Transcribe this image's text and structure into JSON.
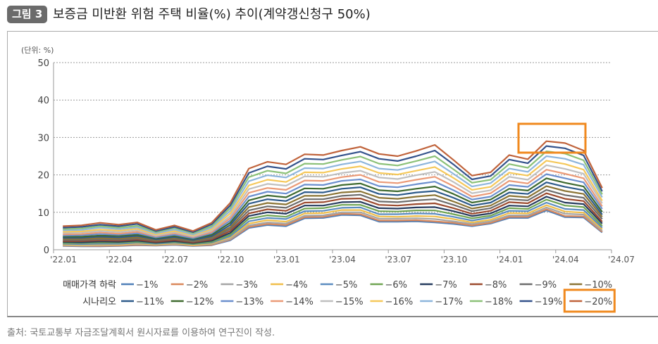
{
  "figure": {
    "badge": "그림 3",
    "title": "보증금 미반환 위험 주택 비율(%) 추이(계약갱신청구 50%)",
    "unit": "(단위: %)"
  },
  "source": "출처: 국토교통부 자금조달계획서 원시자료를 이용하여 연구진이 작성.",
  "highlight_color": "#f0891e",
  "chart_data": {
    "type": "line",
    "title": "",
    "ylim": [
      0,
      50
    ],
    "yticks": [
      0,
      10,
      20,
      30,
      40,
      50
    ],
    "grid": "horizontal dotted",
    "xtick_labels": [
      "'22.01",
      "'22.04",
      "'22.07",
      "'22.10",
      "'23.01",
      "'23.04",
      "'23.07",
      "'23.10",
      "'24.01",
      "'24.04",
      "'24.07"
    ],
    "x": [
      "22.01",
      "22.02",
      "22.03",
      "22.04",
      "22.05",
      "22.06",
      "22.07",
      "22.08",
      "22.09",
      "22.10",
      "22.11",
      "22.12",
      "23.01",
      "23.02",
      "23.03",
      "23.04",
      "23.05",
      "23.06",
      "23.07",
      "23.08",
      "23.09",
      "23.10",
      "23.11",
      "23.12",
      "24.01",
      "24.02",
      "24.03",
      "24.04",
      "24.05",
      "24.06"
    ],
    "legend_title": [
      "매매가격 하락",
      "시나리오"
    ],
    "legend_placement": "bottom",
    "highlighted_series": "-20%",
    "series": [
      {
        "name": "-1%",
        "color": "#4f7fb8",
        "values": [
          1.0,
          0.9,
          0.9,
          1.0,
          1.2,
          1.1,
          1.3,
          1.0,
          1.2,
          2.5,
          5.8,
          6.6,
          6.3,
          8.4,
          8.5,
          9.3,
          9.2,
          7.5,
          7.5,
          7.6,
          7.3,
          6.9,
          6.3,
          7.0,
          8.5,
          8.5,
          10.5,
          8.7,
          8.6,
          4.6
        ]
      },
      {
        "name": "-2%",
        "color": "#d9875a",
        "values": [
          1.1,
          1.0,
          1.0,
          1.1,
          1.3,
          1.2,
          1.4,
          1.1,
          1.3,
          2.7,
          6.1,
          6.9,
          6.6,
          8.7,
          8.8,
          9.6,
          9.5,
          7.8,
          7.8,
          7.9,
          7.6,
          7.2,
          6.5,
          7.2,
          8.8,
          8.8,
          10.8,
          9.0,
          8.9,
          4.8
        ]
      },
      {
        "name": "-3%",
        "color": "#a5a5a5",
        "values": [
          1.2,
          1.1,
          1.2,
          1.3,
          1.5,
          1.3,
          1.5,
          1.2,
          1.5,
          2.9,
          6.5,
          7.3,
          7.0,
          9.1,
          9.2,
          10.0,
          10.0,
          8.3,
          8.3,
          8.4,
          8.2,
          7.6,
          6.9,
          7.6,
          9.2,
          9.2,
          11.3,
          9.6,
          9.4,
          5.1
        ]
      },
      {
        "name": "-4%",
        "color": "#f0be4a",
        "values": [
          1.4,
          1.3,
          1.4,
          1.4,
          1.7,
          1.4,
          1.7,
          1.3,
          1.7,
          3.3,
          7.0,
          7.9,
          7.5,
          9.7,
          9.8,
          10.6,
          10.6,
          8.9,
          8.8,
          9.0,
          8.9,
          8.2,
          7.3,
          8.0,
          9.8,
          9.7,
          11.9,
          10.2,
          9.9,
          5.5
        ]
      },
      {
        "name": "-5%",
        "color": "#5b8cbf",
        "values": [
          1.6,
          1.5,
          1.6,
          1.6,
          1.9,
          1.6,
          1.9,
          1.5,
          1.9,
          3.6,
          7.6,
          8.5,
          8.2,
          10.3,
          10.4,
          11.2,
          11.3,
          9.5,
          9.5,
          9.7,
          9.6,
          8.8,
          7.8,
          8.6,
          10.4,
          10.3,
          12.6,
          10.9,
          10.6,
          5.9
        ]
      },
      {
        "name": "-6%",
        "color": "#6fa452",
        "values": [
          1.8,
          1.8,
          1.9,
          1.9,
          2.1,
          1.8,
          2.1,
          1.6,
          2.1,
          4.0,
          8.3,
          9.2,
          8.8,
          11.0,
          11.1,
          12.0,
          12.0,
          10.3,
          10.2,
          10.5,
          10.5,
          9.5,
          8.4,
          9.1,
          11.1,
          10.9,
          13.4,
          11.8,
          11.4,
          6.4
        ]
      },
      {
        "name": "-7%",
        "color": "#263b5e",
        "values": [
          2.1,
          2.0,
          2.2,
          2.1,
          2.4,
          1.9,
          2.3,
          1.8,
          2.4,
          4.5,
          9.0,
          10.0,
          9.6,
          11.8,
          11.8,
          12.7,
          12.8,
          11.1,
          11.0,
          11.3,
          11.4,
          10.3,
          9.0,
          9.7,
          11.8,
          11.6,
          14.2,
          12.6,
          12.2,
          7.0
        ]
      },
      {
        "name": "-8%",
        "color": "#9b4a2e",
        "values": [
          2.3,
          2.3,
          2.5,
          2.4,
          2.7,
          2.1,
          2.6,
          2.0,
          2.7,
          5.0,
          9.7,
          10.8,
          10.4,
          12.6,
          12.7,
          13.6,
          13.7,
          12.0,
          11.8,
          12.2,
          12.4,
          11.1,
          9.6,
          10.4,
          12.7,
          12.4,
          15.1,
          13.6,
          13.0,
          7.5
        ]
      },
      {
        "name": "-9%",
        "color": "#6c6c6c",
        "values": [
          2.6,
          2.6,
          2.8,
          2.7,
          3.0,
          2.4,
          2.9,
          2.2,
          3.0,
          5.5,
          10.5,
          11.6,
          11.2,
          13.5,
          13.5,
          14.4,
          14.7,
          12.9,
          12.7,
          13.2,
          13.5,
          12.0,
          10.3,
          11.1,
          13.5,
          13.2,
          16.0,
          14.6,
          13.9,
          8.2
        ]
      },
      {
        "name": "-10%",
        "color": "#8b7434",
        "values": [
          2.9,
          2.9,
          3.1,
          3.0,
          3.3,
          2.6,
          3.1,
          2.4,
          3.3,
          6.0,
          11.4,
          12.5,
          12.1,
          14.4,
          14.4,
          15.3,
          15.6,
          13.9,
          13.6,
          14.2,
          14.6,
          12.9,
          11.0,
          11.8,
          14.4,
          14.0,
          17.0,
          15.7,
          14.9,
          8.8
        ]
      },
      {
        "name": "-11%",
        "color": "#2d5a8a",
        "values": [
          3.2,
          3.2,
          3.5,
          3.3,
          3.7,
          2.8,
          3.4,
          2.6,
          3.6,
          6.6,
          12.3,
          13.5,
          13.0,
          15.4,
          15.3,
          16.3,
          16.7,
          14.9,
          14.6,
          15.3,
          15.7,
          13.9,
          11.8,
          12.6,
          15.3,
          14.9,
          18.0,
          16.8,
          15.9,
          9.4
        ]
      },
      {
        "name": "-12%",
        "color": "#3e6a2f",
        "values": [
          3.5,
          3.5,
          3.8,
          3.7,
          4.0,
          3.1,
          3.7,
          2.9,
          4.0,
          7.2,
          13.2,
          14.5,
          14.0,
          16.4,
          16.3,
          17.3,
          17.7,
          15.9,
          15.6,
          16.3,
          16.9,
          14.9,
          12.6,
          13.4,
          16.3,
          15.8,
          19.1,
          17.9,
          16.9,
          10.1
        ]
      },
      {
        "name": "-13%",
        "color": "#6b8fce",
        "values": [
          3.8,
          3.9,
          4.2,
          4.0,
          4.4,
          3.3,
          4.0,
          3.1,
          4.4,
          7.8,
          14.2,
          15.5,
          15.0,
          17.4,
          17.3,
          18.4,
          18.8,
          17.0,
          16.7,
          17.5,
          18.2,
          15.9,
          13.4,
          14.2,
          17.3,
          16.8,
          20.2,
          19.1,
          18.0,
          10.9
        ]
      },
      {
        "name": "-14%",
        "color": "#eb9a77",
        "values": [
          4.1,
          4.2,
          4.6,
          4.3,
          4.8,
          3.6,
          4.4,
          3.4,
          4.7,
          8.4,
          15.2,
          16.5,
          16.0,
          18.5,
          18.4,
          19.4,
          20.0,
          18.1,
          17.8,
          18.7,
          19.5,
          17.0,
          14.2,
          15.1,
          18.4,
          17.7,
          21.4,
          20.3,
          19.1,
          11.6
        ]
      },
      {
        "name": "-15%",
        "color": "#bfbfbf",
        "values": [
          4.5,
          4.6,
          5.0,
          4.7,
          5.2,
          3.8,
          4.7,
          3.6,
          5.1,
          9.0,
          16.2,
          17.6,
          17.1,
          19.6,
          19.5,
          20.5,
          21.1,
          19.3,
          18.9,
          19.9,
          20.8,
          18.1,
          15.1,
          15.9,
          19.5,
          18.7,
          22.6,
          21.6,
          20.3,
          12.4
        ]
      },
      {
        "name": "-16%",
        "color": "#f5c85a",
        "values": [
          4.8,
          4.9,
          5.4,
          5.1,
          5.6,
          4.1,
          5.0,
          3.9,
          5.5,
          9.7,
          17.2,
          18.7,
          18.1,
          20.7,
          20.6,
          21.6,
          22.3,
          20.5,
          20.1,
          21.1,
          22.1,
          19.2,
          16.0,
          16.8,
          20.6,
          19.8,
          23.8,
          22.9,
          21.4,
          13.1
        ]
      },
      {
        "name": "-17%",
        "color": "#8db5dc",
        "values": [
          5.2,
          5.3,
          5.9,
          5.5,
          6.0,
          4.4,
          5.4,
          4.1,
          5.9,
          10.4,
          18.3,
          19.9,
          19.3,
          21.8,
          21.7,
          22.8,
          23.6,
          21.7,
          21.3,
          22.4,
          23.6,
          20.3,
          16.9,
          17.8,
          21.7,
          20.8,
          25.0,
          24.3,
          22.7,
          14.0
        ]
      },
      {
        "name": "-18%",
        "color": "#8cc178",
        "values": [
          5.5,
          5.7,
          6.3,
          5.9,
          6.4,
          4.7,
          5.8,
          4.4,
          6.3,
          11.1,
          19.4,
          21.1,
          20.4,
          23.0,
          22.9,
          24.0,
          24.9,
          23.0,
          22.5,
          23.7,
          25.0,
          21.5,
          17.9,
          18.7,
          22.9,
          21.9,
          26.3,
          25.7,
          23.9,
          14.8
        ]
      },
      {
        "name": "-19%",
        "color": "#33528b",
        "values": [
          5.9,
          6.1,
          6.7,
          6.3,
          6.9,
          5.0,
          6.1,
          4.7,
          6.8,
          11.8,
          20.5,
          22.3,
          21.6,
          24.3,
          24.1,
          25.2,
          26.2,
          24.3,
          23.7,
          25.0,
          26.5,
          22.8,
          18.8,
          19.7,
          24.1,
          23.1,
          27.7,
          27.1,
          25.2,
          15.6
        ]
      },
      {
        "name": "-20%",
        "color": "#c0633b",
        "values": [
          6.3,
          6.5,
          7.2,
          6.7,
          7.3,
          5.3,
          6.5,
          5.0,
          7.2,
          12.5,
          21.7,
          23.5,
          22.8,
          25.5,
          25.3,
          26.5,
          27.5,
          25.6,
          25.0,
          26.4,
          28.0,
          24.0,
          19.8,
          20.7,
          25.3,
          24.2,
          29.0,
          28.5,
          26.5,
          16.5
        ]
      }
    ]
  }
}
